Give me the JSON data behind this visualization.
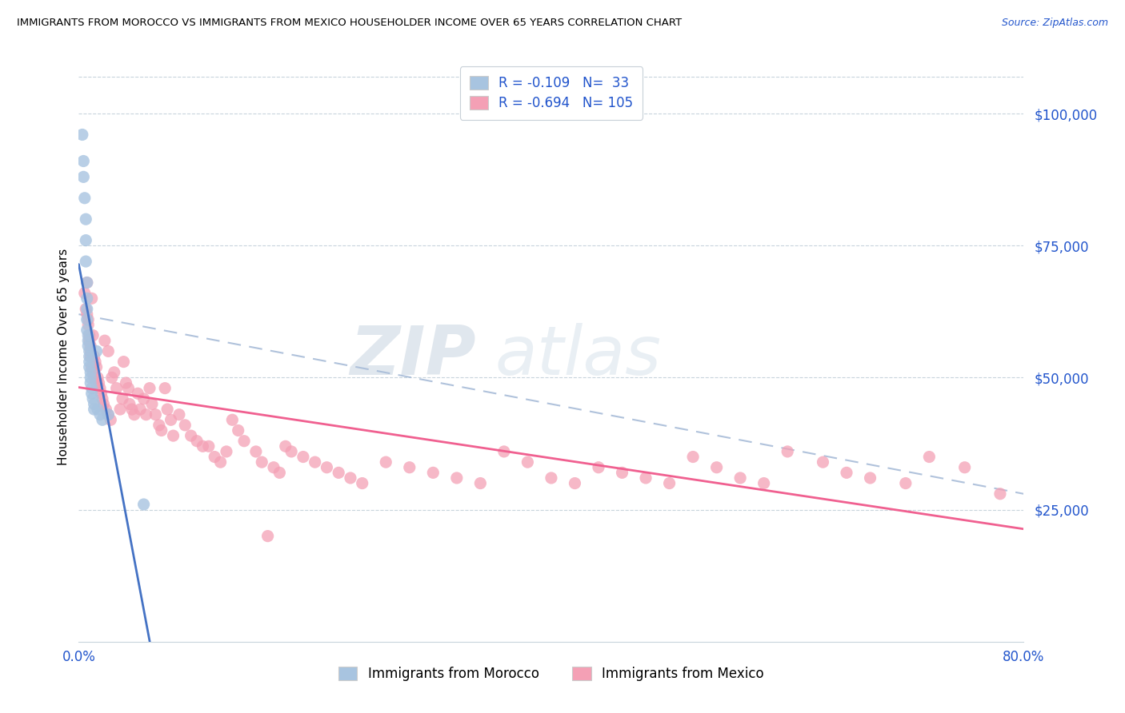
{
  "title": "IMMIGRANTS FROM MOROCCO VS IMMIGRANTS FROM MEXICO HOUSEHOLDER INCOME OVER 65 YEARS CORRELATION CHART",
  "source": "Source: ZipAtlas.com",
  "ylabel": "Householder Income Over 65 years",
  "ytick_labels": [
    "$25,000",
    "$50,000",
    "$75,000",
    "$100,000"
  ],
  "ytick_values": [
    25000,
    50000,
    75000,
    100000
  ],
  "ylim": [
    0,
    108000
  ],
  "xlim": [
    0,
    0.8
  ],
  "morocco_R": -0.109,
  "morocco_N": 33,
  "mexico_R": -0.694,
  "mexico_N": 105,
  "morocco_color": "#a8c4e0",
  "mexico_color": "#f4a0b5",
  "morocco_line_color": "#4472c4",
  "mexico_line_color": "#f06090",
  "dashed_line_color": "#a8bcd8",
  "legend_text_color": "#2255cc",
  "background_color": "#ffffff",
  "grid_color": "#c8d4dc",
  "watermark_zip": "ZIP",
  "watermark_atlas": "atlas",
  "morocco_x": [
    0.003,
    0.004,
    0.004,
    0.005,
    0.006,
    0.006,
    0.006,
    0.007,
    0.007,
    0.007,
    0.007,
    0.007,
    0.008,
    0.008,
    0.008,
    0.009,
    0.009,
    0.009,
    0.009,
    0.01,
    0.01,
    0.01,
    0.011,
    0.011,
    0.012,
    0.013,
    0.013,
    0.015,
    0.016,
    0.018,
    0.02,
    0.025,
    0.055
  ],
  "morocco_y": [
    96000,
    91000,
    88000,
    84000,
    80000,
    76000,
    72000,
    68000,
    65000,
    63000,
    61000,
    59000,
    58000,
    57000,
    56000,
    55000,
    54000,
    53000,
    52000,
    51000,
    50000,
    49000,
    48000,
    47000,
    46000,
    45000,
    44000,
    55000,
    44000,
    43000,
    42000,
    43000,
    26000
  ],
  "mexico_x": [
    0.005,
    0.006,
    0.007,
    0.007,
    0.008,
    0.008,
    0.009,
    0.009,
    0.01,
    0.01,
    0.01,
    0.011,
    0.011,
    0.012,
    0.012,
    0.013,
    0.013,
    0.014,
    0.015,
    0.015,
    0.016,
    0.017,
    0.018,
    0.019,
    0.02,
    0.021,
    0.022,
    0.023,
    0.025,
    0.025,
    0.027,
    0.028,
    0.03,
    0.032,
    0.035,
    0.037,
    0.038,
    0.04,
    0.042,
    0.043,
    0.045,
    0.047,
    0.05,
    0.052,
    0.055,
    0.057,
    0.06,
    0.062,
    0.065,
    0.068,
    0.07,
    0.073,
    0.075,
    0.078,
    0.08,
    0.085,
    0.09,
    0.095,
    0.1,
    0.105,
    0.11,
    0.115,
    0.12,
    0.125,
    0.13,
    0.135,
    0.14,
    0.15,
    0.155,
    0.16,
    0.165,
    0.17,
    0.175,
    0.18,
    0.19,
    0.2,
    0.21,
    0.22,
    0.23,
    0.24,
    0.26,
    0.28,
    0.3,
    0.32,
    0.34,
    0.36,
    0.38,
    0.4,
    0.42,
    0.44,
    0.46,
    0.48,
    0.5,
    0.52,
    0.54,
    0.56,
    0.58,
    0.6,
    0.63,
    0.65,
    0.67,
    0.7,
    0.72,
    0.75,
    0.78
  ],
  "mexico_y": [
    66000,
    63000,
    68000,
    62000,
    61000,
    60000,
    58000,
    57000,
    56000,
    55000,
    54000,
    65000,
    52000,
    58000,
    51000,
    54000,
    50000,
    53000,
    52000,
    49000,
    50000,
    49000,
    48000,
    47000,
    46000,
    45000,
    57000,
    44000,
    43000,
    55000,
    42000,
    50000,
    51000,
    48000,
    44000,
    46000,
    53000,
    49000,
    48000,
    45000,
    44000,
    43000,
    47000,
    44000,
    46000,
    43000,
    48000,
    45000,
    43000,
    41000,
    40000,
    48000,
    44000,
    42000,
    39000,
    43000,
    41000,
    39000,
    38000,
    37000,
    37000,
    35000,
    34000,
    36000,
    42000,
    40000,
    38000,
    36000,
    34000,
    20000,
    33000,
    32000,
    37000,
    36000,
    35000,
    34000,
    33000,
    32000,
    31000,
    30000,
    34000,
    33000,
    32000,
    31000,
    30000,
    36000,
    34000,
    31000,
    30000,
    33000,
    32000,
    31000,
    30000,
    35000,
    33000,
    31000,
    30000,
    36000,
    34000,
    32000,
    31000,
    30000,
    35000,
    33000,
    28000
  ]
}
